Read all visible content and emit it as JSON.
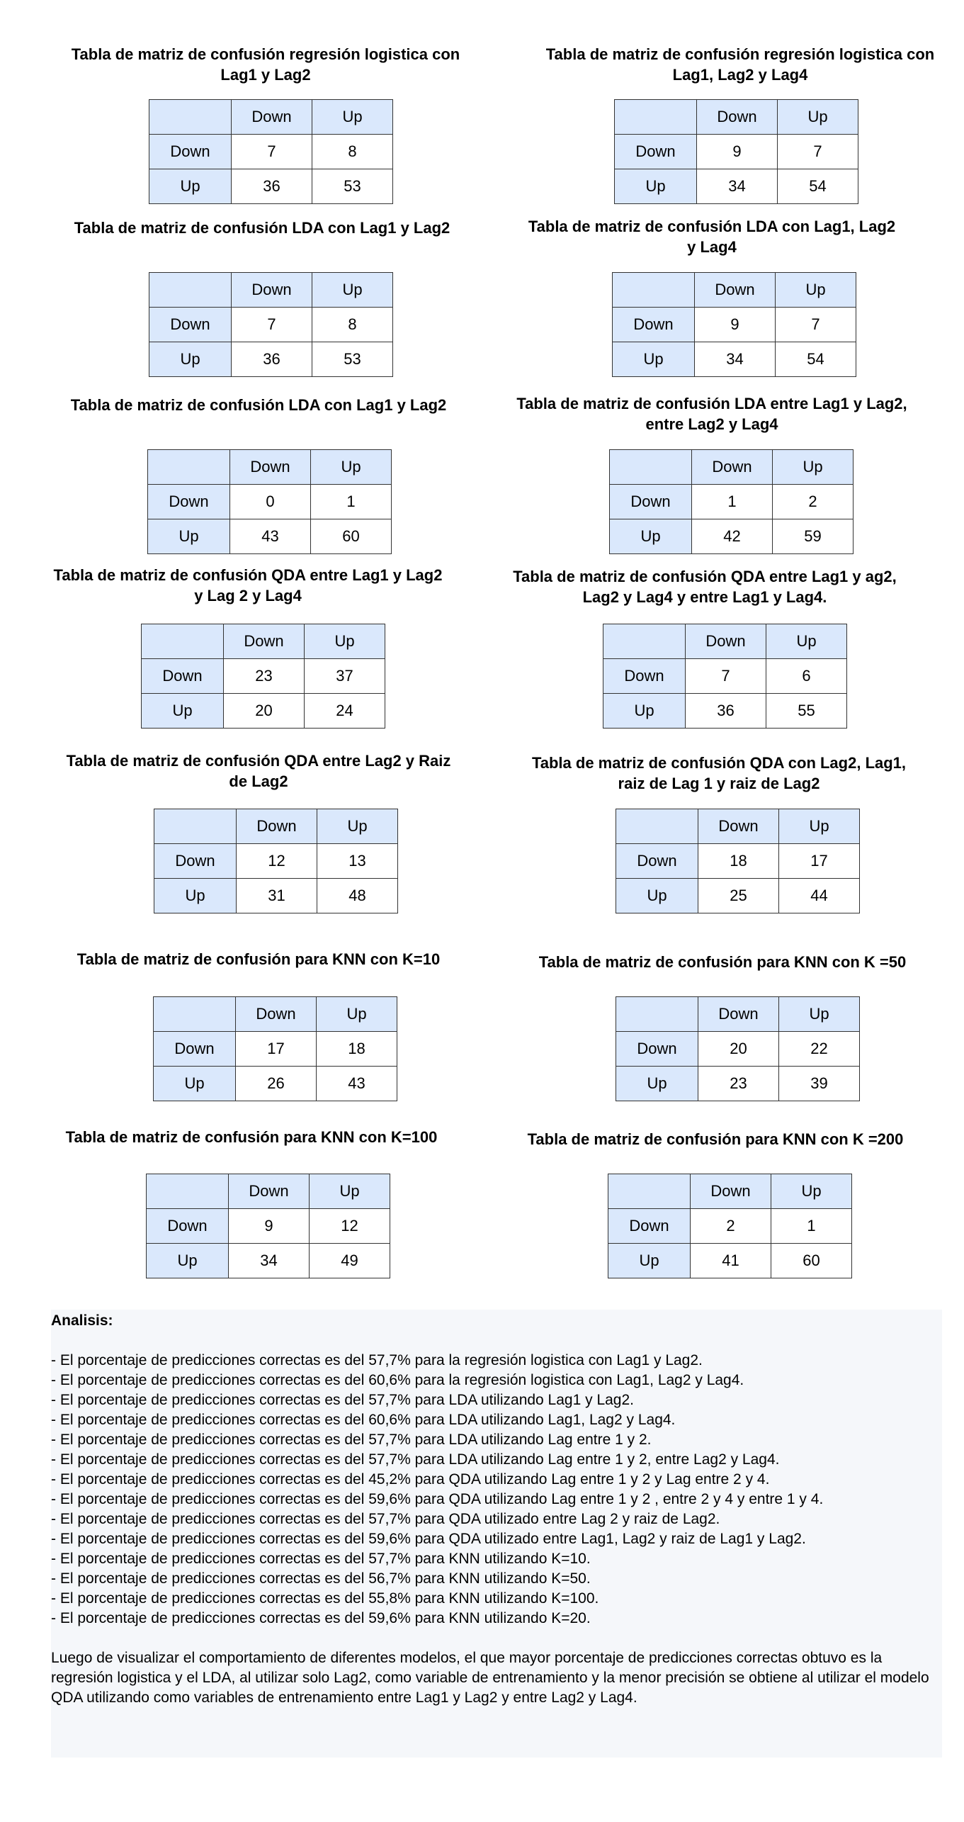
{
  "tables": [
    {
      "title": "Tabla de matriz de confusión regresión logistica con Lag1 y Lag2",
      "cols": [
        "Down",
        "Up"
      ],
      "rows": [
        {
          "label": "Down",
          "values": [
            "7",
            "8"
          ]
        },
        {
          "label": "Up",
          "values": [
            "36",
            "53"
          ]
        }
      ]
    },
    {
      "title": "Tabla de matriz de confusión regresión logistica con Lag1, Lag2 y Lag4",
      "cols": [
        "Down",
        "Up"
      ],
      "rows": [
        {
          "label": "Down",
          "values": [
            "9",
            "7"
          ]
        },
        {
          "label": "Up",
          "values": [
            "34",
            "54"
          ]
        }
      ]
    },
    {
      "title": "Tabla de matriz de confusión LDA con Lag1 y Lag2",
      "cols": [
        "Down",
        "Up"
      ],
      "rows": [
        {
          "label": "Down",
          "values": [
            "7",
            "8"
          ]
        },
        {
          "label": "Up",
          "values": [
            "36",
            "53"
          ]
        }
      ]
    },
    {
      "title": "Tabla de matriz de confusión LDA con Lag1, Lag2 y Lag4",
      "cols": [
        "Down",
        "Up"
      ],
      "rows": [
        {
          "label": "Down",
          "values": [
            "9",
            "7"
          ]
        },
        {
          "label": "Up",
          "values": [
            "34",
            "54"
          ]
        }
      ]
    },
    {
      "title": "Tabla de matriz de confusión LDA con Lag1 y Lag2",
      "cols": [
        "Down",
        "Up"
      ],
      "rows": [
        {
          "label": "Down",
          "values": [
            "0",
            "1"
          ]
        },
        {
          "label": "Up",
          "values": [
            "43",
            "60"
          ]
        }
      ]
    },
    {
      "title": "Tabla de matriz de confusión LDA entre Lag1 y Lag2, entre Lag2 y Lag4",
      "cols": [
        "Down",
        "Up"
      ],
      "rows": [
        {
          "label": "Down",
          "values": [
            "1",
            "2"
          ]
        },
        {
          "label": "Up",
          "values": [
            "42",
            "59"
          ]
        }
      ]
    },
    {
      "title": "Tabla de matriz de confusión QDA entre Lag1 y Lag2 y Lag 2 y Lag4",
      "cols": [
        "Down",
        "Up"
      ],
      "rows": [
        {
          "label": "Down",
          "values": [
            "23",
            "37"
          ]
        },
        {
          "label": "Up",
          "values": [
            "20",
            "24"
          ]
        }
      ]
    },
    {
      "title": "Tabla de matriz de confusión QDA entre Lag1 y ag2, Lag2 y Lag4 y entre Lag1 y Lag4.",
      "cols": [
        "Down",
        "Up"
      ],
      "rows": [
        {
          "label": "Down",
          "values": [
            "7",
            "6"
          ]
        },
        {
          "label": "Up",
          "values": [
            "36",
            "55"
          ]
        }
      ]
    },
    {
      "title": "Tabla de matriz de confusión QDA entre Lag2 y Raiz de Lag2",
      "cols": [
        "Down",
        "Up"
      ],
      "rows": [
        {
          "label": "Down",
          "values": [
            "12",
            "13"
          ]
        },
        {
          "label": "Up",
          "values": [
            "31",
            "48"
          ]
        }
      ]
    },
    {
      "title": "Tabla de matriz de confusión QDA con Lag2, Lag1, raiz de Lag 1 y raiz de Lag2",
      "cols": [
        "Down",
        "Up"
      ],
      "rows": [
        {
          "label": "Down",
          "values": [
            "18",
            "17"
          ]
        },
        {
          "label": "Up",
          "values": [
            "25",
            "44"
          ]
        }
      ]
    },
    {
      "title": "Tabla de matriz de confusión para KNN con K=10",
      "cols": [
        "Down",
        "Up"
      ],
      "rows": [
        {
          "label": "Down",
          "values": [
            "17",
            "18"
          ]
        },
        {
          "label": "Up",
          "values": [
            "26",
            "43"
          ]
        }
      ]
    },
    {
      "title": "Tabla de matriz de confusión para KNN con K =50",
      "cols": [
        "Down",
        "Up"
      ],
      "rows": [
        {
          "label": "Down",
          "values": [
            "20",
            "22"
          ]
        },
        {
          "label": "Up",
          "values": [
            "23",
            "39"
          ]
        }
      ]
    },
    {
      "title": "Tabla de matriz de confusión para KNN con K=100",
      "cols": [
        "Down",
        "Up"
      ],
      "rows": [
        {
          "label": "Down",
          "values": [
            "9",
            "12"
          ]
        },
        {
          "label": "Up",
          "values": [
            "34",
            "49"
          ]
        }
      ]
    },
    {
      "title": "Tabla de matriz de confusión para KNN con K =200",
      "cols": [
        "Down",
        "Up"
      ],
      "rows": [
        {
          "label": "Down",
          "values": [
            "2",
            "1"
          ]
        },
        {
          "label": "Up",
          "values": [
            "41",
            "60"
          ]
        }
      ]
    }
  ],
  "analysis": {
    "heading": "Analisis:",
    "items": [
      "- El porcentaje de predicciones correctas es del 57,7% para la regresión logistica con Lag1 y Lag2.",
      "- El porcentaje de predicciones correctas es del 60,6% para la regresión logistica con Lag1, Lag2 y Lag4.",
      "- El porcentaje de predicciones correctas es del 57,7% para LDA utilizando Lag1 y Lag2.",
      "- El porcentaje de predicciones correctas es del 60,6% para LDA utilizando Lag1, Lag2 y Lag4.",
      "- El porcentaje de predicciones correctas es del 57,7% para LDA utilizando Lag entre 1 y 2.",
      "- El porcentaje de predicciones correctas es del 57,7% para LDA utilizando Lag entre 1 y 2, entre Lag2 y Lag4.",
      "- El porcentaje de predicciones correctas es del 45,2% para QDA utilizando Lag entre 1 y 2 y Lag entre 2 y 4.",
      "- El porcentaje de predicciones correctas es del 59,6% para QDA utilizando Lag entre 1  y 2 , entre 2 y 4 y entre 1 y 4.",
      "- El porcentaje de predicciones correctas es del 57,7% para QDA utilizado entre Lag 2  y raiz de Lag2.",
      "- El porcentaje de predicciones correctas es del 59,6% para QDA utilizado entre Lag1, Lag2 y raiz de Lag1 y Lag2.",
      "- El porcentaje de predicciones correctas es del 57,7% para KNN utilizando K=10.",
      "- El porcentaje de predicciones correctas es del 56,7% para KNN utilizando K=50.",
      "- El porcentaje de predicciones correctas es del 55,8% para KNN utilizando K=100.",
      "- El porcentaje de predicciones correctas es del 59,6% para KNN utilizando K=20."
    ],
    "conclusion": "Luego de visualizar el comportamiento de diferentes modelos, el que mayor porcentaje de predicciones correctas obtuvo es la regresión logistica y el LDA, al utilizar solo Lag2, como variable de entrenamiento y la menor precisión se obtiene al utilizar el modelo QDA utilizando como variables de entrenamiento entre Lag1 y Lag2 y entre Lag2 y Lag4."
  }
}
